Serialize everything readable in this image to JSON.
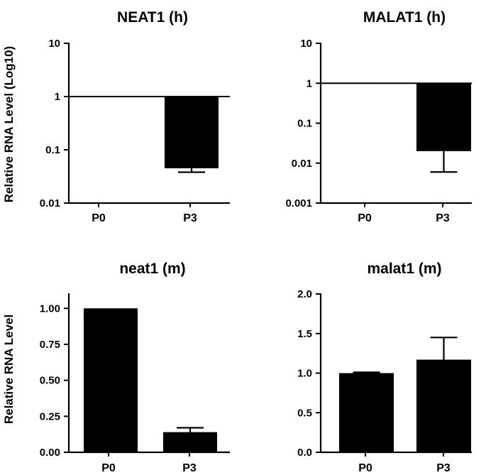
{
  "chart_data": [
    {
      "type": "bar",
      "title": "NEAT1 (h)",
      "ylabel": "Relative RNA Level (Log10)",
      "yscale": "log",
      "ylim": [
        0.01,
        10
      ],
      "yticks": [
        0.01,
        0.1,
        1,
        10
      ],
      "ytick_labels": [
        "0.01",
        "0.1",
        "1",
        "10"
      ],
      "reference_line": 1,
      "categories": [
        "P0",
        "P3"
      ],
      "values": [
        1,
        0.045
      ],
      "error_low": [
        1,
        0.038
      ],
      "error_high": [
        1,
        0.045
      ]
    },
    {
      "type": "bar",
      "title": "MALAT1 (h)",
      "ylabel": "",
      "yscale": "log",
      "ylim": [
        0.001,
        10
      ],
      "yticks": [
        0.001,
        0.01,
        0.1,
        1,
        10
      ],
      "ytick_labels": [
        "0.001",
        "0.01",
        "0.1",
        "1",
        "10"
      ],
      "reference_line": 1,
      "categories": [
        "P0",
        "P3"
      ],
      "values": [
        1,
        0.02
      ],
      "error_low": [
        1,
        0.006
      ],
      "error_high": [
        1,
        0.02
      ]
    },
    {
      "type": "bar",
      "title": "neat1 (m)",
      "ylabel": "Relative RNA Level",
      "yscale": "linear",
      "ylim": [
        0,
        1.1
      ],
      "yticks": [
        0,
        0.25,
        0.5,
        0.75,
        1.0
      ],
      "ytick_labels": [
        "0.00",
        "0.25",
        "0.50",
        "0.75",
        "1.00"
      ],
      "categories": [
        "P0",
        "P3"
      ],
      "values": [
        1.0,
        0.14
      ],
      "error_low": [
        1.0,
        0.14
      ],
      "error_high": [
        1.0,
        0.17
      ]
    },
    {
      "type": "bar",
      "title": "malat1 (m)",
      "ylabel": "",
      "yscale": "linear",
      "ylim": [
        0,
        2.0
      ],
      "yticks": [
        0,
        0.5,
        1.0,
        1.5,
        2.0
      ],
      "ytick_labels": [
        "0.0",
        "0.5",
        "1.0",
        "1.5",
        "2.0"
      ],
      "categories": [
        "P0",
        "P3"
      ],
      "values": [
        1.0,
        1.17
      ],
      "error_low": [
        1.0,
        1.17
      ],
      "error_high": [
        1.01,
        1.45
      ]
    }
  ]
}
